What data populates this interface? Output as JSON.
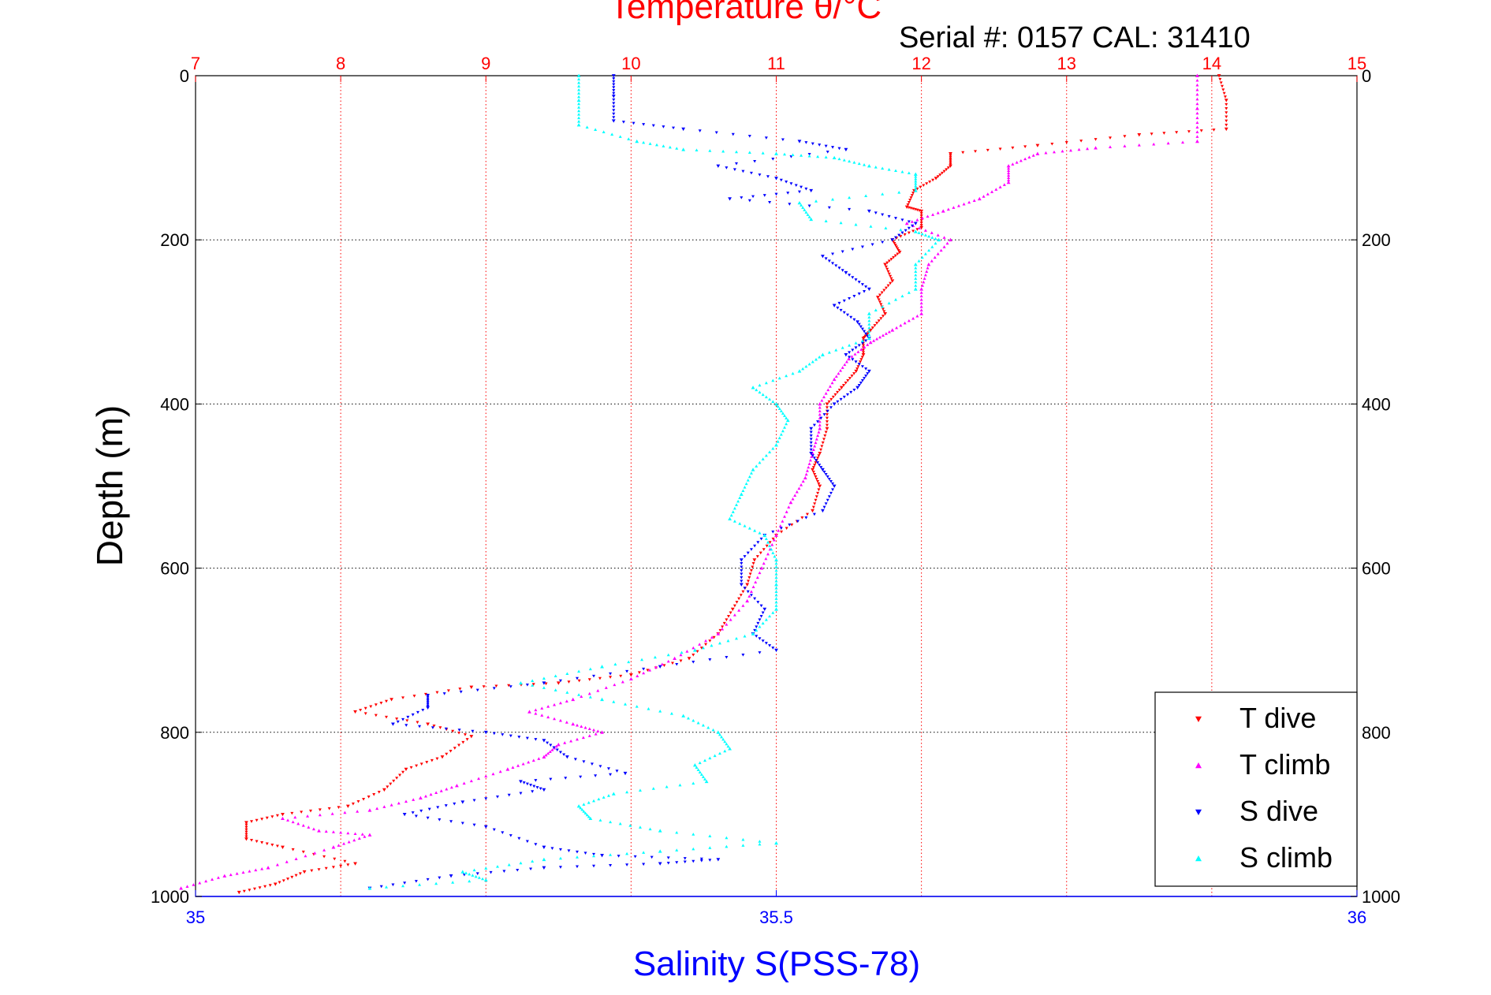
{
  "chart_data": {
    "type": "scatter",
    "title": "Temperature θ/°C",
    "subtitle": "Serial #: 0157  CAL: 31410",
    "ylabel": "Depth (m)",
    "xlabel_bottom": "Salinity S(PSS-78)",
    "y": {
      "range": [
        0,
        1000
      ],
      "reversed": true,
      "ticks": [
        0,
        200,
        400,
        600,
        800,
        1000
      ]
    },
    "x_top": {
      "label": "Temperature θ/°C",
      "range": [
        7,
        15
      ],
      "ticks": [
        7,
        8,
        9,
        10,
        11,
        12,
        13,
        14,
        15
      ],
      "color": "#ff0000"
    },
    "x_bottom": {
      "label": "Salinity S(PSS-78)",
      "range": [
        35,
        36
      ],
      "ticks": [
        35,
        35.5,
        36
      ],
      "tick_labels": [
        "35",
        "35.5",
        "36"
      ],
      "color": "#0000ff"
    },
    "grid": true,
    "legend_position": "bottom-right",
    "series": [
      {
        "name": "T dive",
        "axis": "temperature",
        "color": "#ff0000",
        "marker": "triangle-down",
        "points": [
          [
            14.05,
            0
          ],
          [
            14.1,
            30
          ],
          [
            14.1,
            65
          ],
          [
            13.5,
            72
          ],
          [
            12.8,
            85
          ],
          [
            12.2,
            95
          ],
          [
            12.2,
            110
          ],
          [
            12.1,
            125
          ],
          [
            11.95,
            140
          ],
          [
            11.9,
            160
          ],
          [
            12.0,
            165
          ],
          [
            12.0,
            185
          ],
          [
            11.8,
            200
          ],
          [
            11.85,
            215
          ],
          [
            11.75,
            230
          ],
          [
            11.8,
            250
          ],
          [
            11.7,
            270
          ],
          [
            11.75,
            290
          ],
          [
            11.65,
            310
          ],
          [
            11.6,
            320
          ],
          [
            11.6,
            340
          ],
          [
            11.55,
            360
          ],
          [
            11.45,
            380
          ],
          [
            11.35,
            400
          ],
          [
            11.35,
            430
          ],
          [
            11.3,
            460
          ],
          [
            11.25,
            480
          ],
          [
            11.3,
            500
          ],
          [
            11.25,
            530
          ],
          [
            11.0,
            560
          ],
          [
            10.85,
            590
          ],
          [
            10.8,
            620
          ],
          [
            10.7,
            650
          ],
          [
            10.6,
            680
          ],
          [
            10.4,
            710
          ],
          [
            10.0,
            730
          ],
          [
            9.5,
            740
          ],
          [
            8.9,
            745
          ],
          [
            8.35,
            760
          ],
          [
            8.1,
            775
          ],
          [
            8.6,
            790
          ],
          [
            8.9,
            805
          ],
          [
            8.7,
            830
          ],
          [
            8.45,
            845
          ],
          [
            8.3,
            870
          ],
          [
            8.05,
            890
          ],
          [
            7.6,
            900
          ],
          [
            7.35,
            910
          ],
          [
            7.35,
            930
          ],
          [
            7.6,
            940
          ],
          [
            8.1,
            960
          ],
          [
            7.75,
            970
          ],
          [
            7.55,
            985
          ],
          [
            7.3,
            995
          ]
        ]
      },
      {
        "name": "T climb",
        "axis": "temperature",
        "color": "#ff00ff",
        "marker": "triangle-up",
        "points": [
          [
            13.9,
            0
          ],
          [
            13.9,
            40
          ],
          [
            13.9,
            80
          ],
          [
            13.2,
            88
          ],
          [
            12.8,
            95
          ],
          [
            12.6,
            110
          ],
          [
            12.6,
            130
          ],
          [
            12.4,
            150
          ],
          [
            12.15,
            165
          ],
          [
            11.9,
            180
          ],
          [
            12.2,
            200
          ],
          [
            12.05,
            230
          ],
          [
            12.0,
            260
          ],
          [
            12.0,
            290
          ],
          [
            11.8,
            310
          ],
          [
            11.65,
            325
          ],
          [
            11.5,
            345
          ],
          [
            11.4,
            370
          ],
          [
            11.3,
            400
          ],
          [
            11.3,
            430
          ],
          [
            11.25,
            460
          ],
          [
            11.2,
            490
          ],
          [
            11.1,
            520
          ],
          [
            11.0,
            560
          ],
          [
            10.9,
            600
          ],
          [
            10.8,
            640
          ],
          [
            10.6,
            680
          ],
          [
            10.3,
            710
          ],
          [
            10.0,
            735
          ],
          [
            9.6,
            760
          ],
          [
            9.3,
            775
          ],
          [
            9.6,
            790
          ],
          [
            9.8,
            800
          ],
          [
            9.5,
            815
          ],
          [
            9.4,
            830
          ],
          [
            9.15,
            845
          ],
          [
            8.8,
            865
          ],
          [
            8.55,
            880
          ],
          [
            8.2,
            895
          ],
          [
            7.6,
            905
          ],
          [
            7.85,
            920
          ],
          [
            8.2,
            925
          ],
          [
            7.95,
            940
          ],
          [
            7.5,
            965
          ],
          [
            7.2,
            975
          ],
          [
            6.9,
            990
          ]
        ]
      },
      {
        "name": "S dive",
        "axis": "salinity",
        "color": "#0000ff",
        "marker": "triangle-down",
        "points": [
          [
            35.36,
            0
          ],
          [
            35.36,
            25
          ],
          [
            35.36,
            55
          ],
          [
            35.42,
            65
          ],
          [
            35.52,
            80
          ],
          [
            35.56,
            90
          ],
          [
            35.45,
            110
          ],
          [
            35.5,
            125
          ],
          [
            35.53,
            140
          ],
          [
            35.46,
            150
          ],
          [
            35.58,
            165
          ],
          [
            35.62,
            180
          ],
          [
            35.6,
            200
          ],
          [
            35.54,
            220
          ],
          [
            35.56,
            240
          ],
          [
            35.58,
            260
          ],
          [
            35.55,
            280
          ],
          [
            35.57,
            300
          ],
          [
            35.58,
            320
          ],
          [
            35.56,
            340
          ],
          [
            35.58,
            360
          ],
          [
            35.57,
            380
          ],
          [
            35.55,
            400
          ],
          [
            35.53,
            430
          ],
          [
            35.53,
            460
          ],
          [
            35.54,
            480
          ],
          [
            35.55,
            500
          ],
          [
            35.54,
            530
          ],
          [
            35.49,
            560
          ],
          [
            35.47,
            590
          ],
          [
            35.47,
            620
          ],
          [
            35.49,
            650
          ],
          [
            35.48,
            680
          ],
          [
            35.5,
            700
          ],
          [
            35.4,
            720
          ],
          [
            35.3,
            740
          ],
          [
            35.2,
            755
          ],
          [
            35.2,
            770
          ],
          [
            35.17,
            790
          ],
          [
            35.25,
            800
          ],
          [
            35.3,
            810
          ],
          [
            35.32,
            830
          ],
          [
            35.37,
            850
          ],
          [
            35.28,
            860
          ],
          [
            35.3,
            870
          ],
          [
            35.23,
            885
          ],
          [
            35.18,
            900
          ],
          [
            35.25,
            915
          ],
          [
            35.3,
            940
          ],
          [
            35.35,
            950
          ],
          [
            35.45,
            955
          ],
          [
            35.4,
            960
          ],
          [
            35.3,
            965
          ],
          [
            35.22,
            975
          ],
          [
            35.15,
            990
          ]
        ]
      },
      {
        "name": "S climb",
        "axis": "salinity",
        "color": "#00ffff",
        "marker": "triangle-up",
        "points": [
          [
            35.33,
            0
          ],
          [
            35.33,
            30
          ],
          [
            35.33,
            60
          ],
          [
            35.38,
            80
          ],
          [
            35.42,
            90
          ],
          [
            35.5,
            95
          ],
          [
            35.55,
            100
          ],
          [
            35.58,
            110
          ],
          [
            35.62,
            120
          ],
          [
            35.62,
            140
          ],
          [
            35.52,
            155
          ],
          [
            35.53,
            175
          ],
          [
            35.62,
            190
          ],
          [
            35.64,
            200
          ],
          [
            35.62,
            230
          ],
          [
            35.62,
            260
          ],
          [
            35.58,
            290
          ],
          [
            35.58,
            320
          ],
          [
            35.54,
            340
          ],
          [
            35.52,
            360
          ],
          [
            35.48,
            380
          ],
          [
            35.5,
            400
          ],
          [
            35.51,
            420
          ],
          [
            35.5,
            450
          ],
          [
            35.48,
            480
          ],
          [
            35.47,
            510
          ],
          [
            35.46,
            540
          ],
          [
            35.49,
            560
          ],
          [
            35.5,
            590
          ],
          [
            35.5,
            620
          ],
          [
            35.5,
            650
          ],
          [
            35.48,
            680
          ],
          [
            35.43,
            700
          ],
          [
            35.35,
            720
          ],
          [
            35.28,
            740
          ],
          [
            35.35,
            760
          ],
          [
            35.42,
            780
          ],
          [
            35.45,
            800
          ],
          [
            35.46,
            820
          ],
          [
            35.43,
            840
          ],
          [
            35.44,
            860
          ],
          [
            35.36,
            875
          ],
          [
            35.33,
            890
          ],
          [
            35.34,
            905
          ],
          [
            35.4,
            920
          ],
          [
            35.5,
            935
          ],
          [
            35.4,
            945
          ],
          [
            35.3,
            955
          ],
          [
            35.23,
            970
          ],
          [
            35.25,
            980
          ],
          [
            35.15,
            990
          ]
        ]
      }
    ]
  }
}
